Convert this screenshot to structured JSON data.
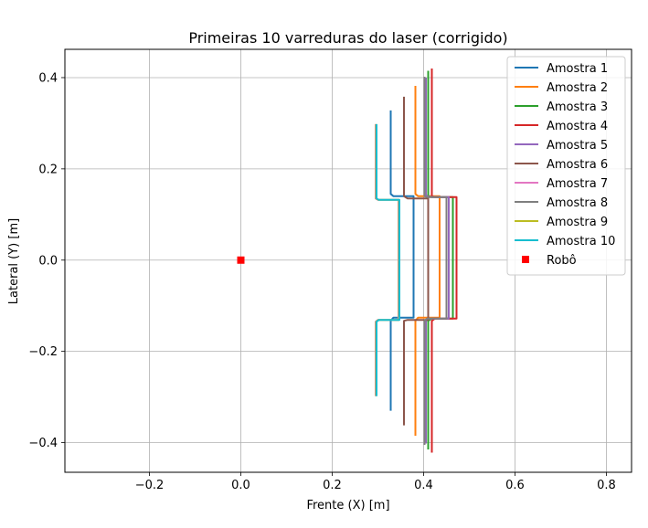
{
  "chart_data": {
    "type": "line",
    "title": "Primeiras 10 varreduras do laser (corrigido)",
    "xlabel": "Frente (X) [m]",
    "ylabel": "Lateral (Y) [m]",
    "xlim": [
      -0.385,
      0.855
    ],
    "ylim": [
      -0.465,
      0.462
    ],
    "xticks": [
      -0.2,
      0.0,
      0.2,
      0.4,
      0.6,
      0.8
    ],
    "xtick_labels": [
      "−0.2",
      "0.0",
      "0.2",
      "0.4",
      "0.6",
      "0.8"
    ],
    "yticks": [
      -0.4,
      -0.2,
      0.0,
      0.2,
      0.4
    ],
    "ytick_labels": [
      "−0.4",
      "−0.2",
      "0.0",
      "0.2",
      "0.4"
    ],
    "grid": true,
    "legend": "top-right",
    "series": [
      {
        "name": "Amostra 1",
        "color": "#1f77b4",
        "x": [
          0.328,
          0.328,
          0.334,
          0.378,
          0.378,
          0.378,
          0.378,
          0.334,
          0.328,
          0.328
        ],
        "y": [
          0.328,
          0.145,
          0.14,
          0.14,
          0.135,
          -0.123,
          -0.126,
          -0.126,
          -0.133,
          -0.33
        ]
      },
      {
        "name": "Amostra 2",
        "color": "#ff7f0e",
        "x": [
          0.382,
          0.382,
          0.388,
          0.435,
          0.435,
          0.435,
          0.435,
          0.388,
          0.382,
          0.382
        ],
        "y": [
          0.382,
          0.145,
          0.14,
          0.14,
          0.135,
          -0.123,
          -0.126,
          -0.126,
          -0.133,
          -0.385
        ]
      },
      {
        "name": "Amostra 3",
        "color": "#2ca02c",
        "x": [
          0.41,
          0.41,
          0.418,
          0.464,
          0.464,
          0.464,
          0.464,
          0.418,
          0.41,
          0.41
        ],
        "y": [
          0.415,
          0.14,
          0.138,
          0.138,
          0.133,
          -0.125,
          -0.128,
          -0.128,
          -0.133,
          -0.415
        ]
      },
      {
        "name": "Amostra 4",
        "color": "#d62728",
        "x": [
          0.418,
          0.418,
          0.425,
          0.472,
          0.472,
          0.472,
          0.472,
          0.425,
          0.418,
          0.418
        ],
        "y": [
          0.42,
          0.14,
          0.138,
          0.138,
          0.133,
          -0.125,
          -0.128,
          -0.128,
          -0.133,
          -0.422
        ]
      },
      {
        "name": "Amostra 5",
        "color": "#9467bd",
        "x": [
          0.405,
          0.405,
          0.412,
          0.455,
          0.455,
          0.455,
          0.455,
          0.412,
          0.405,
          0.405
        ],
        "y": [
          0.4,
          0.142,
          0.138,
          0.138,
          0.133,
          -0.125,
          -0.128,
          -0.128,
          -0.133,
          -0.402
        ]
      },
      {
        "name": "Amostra 6",
        "color": "#8c564b",
        "x": [
          0.357,
          0.357,
          0.365,
          0.41,
          0.41,
          0.41,
          0.41,
          0.365,
          0.357,
          0.357
        ],
        "y": [
          0.358,
          0.14,
          0.135,
          0.135,
          0.13,
          -0.128,
          -0.131,
          -0.131,
          -0.133,
          -0.362
        ]
      },
      {
        "name": "Amostra 7",
        "color": "#e377c2",
        "x": [
          0.295,
          0.295,
          0.3,
          0.345,
          0.345,
          0.345,
          0.345,
          0.3,
          0.295,
          0.295
        ],
        "y": [
          0.298,
          0.135,
          0.132,
          0.132,
          0.127,
          -0.128,
          -0.131,
          -0.131,
          -0.135,
          -0.298
        ]
      },
      {
        "name": "Amostra 8",
        "color": "#7f7f7f",
        "x": [
          0.402,
          0.402,
          0.408,
          0.45,
          0.45,
          0.45,
          0.45,
          0.408,
          0.402,
          0.402
        ],
        "y": [
          0.402,
          0.14,
          0.138,
          0.138,
          0.133,
          -0.125,
          -0.128,
          -0.128,
          -0.133,
          -0.405
        ]
      },
      {
        "name": "Amostra 9",
        "color": "#bcbd22",
        "x": [
          0.296,
          0.296,
          0.301,
          0.346,
          0.346,
          0.346,
          0.346,
          0.301,
          0.296,
          0.296
        ],
        "y": [
          0.298,
          0.135,
          0.132,
          0.132,
          0.127,
          -0.128,
          -0.131,
          -0.131,
          -0.135,
          -0.298
        ]
      },
      {
        "name": "Amostra 10",
        "color": "#17becf",
        "x": [
          0.297,
          0.297,
          0.302,
          0.347,
          0.347,
          0.347,
          0.347,
          0.302,
          0.297,
          0.297
        ],
        "y": [
          0.298,
          0.135,
          0.132,
          0.132,
          0.127,
          -0.128,
          -0.131,
          -0.131,
          -0.135,
          -0.298
        ]
      }
    ],
    "markers": [
      {
        "name": "Robô",
        "color": "#ff0000",
        "shape": "square",
        "x": 0.0,
        "y": 0.0
      }
    ]
  }
}
